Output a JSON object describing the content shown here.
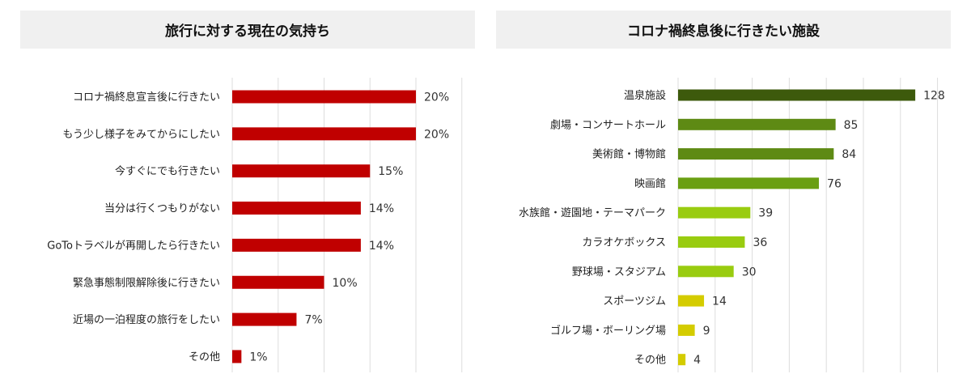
{
  "chart_data": [
    {
      "type": "bar",
      "orientation": "horizontal",
      "title": "旅行に対する現在の気持ち",
      "categories": [
        "コロナ禍終息宣言後に行きたい",
        "もう少し様子をみてからにしたい",
        "今すぐにでも行きたい",
        "当分は行くつもりがない",
        "GoToトラベルが再開したら行きたい",
        "緊急事態制限解除後に行きたい",
        "近場の一泊程度の旅行をしたい",
        "その他"
      ],
      "values": [
        20,
        20,
        15,
        14,
        14,
        10,
        7,
        1
      ],
      "value_labels": [
        "20%",
        "20%",
        "15%",
        "14%",
        "14%",
        "10%",
        "7%",
        "1%"
      ],
      "bar_colors": [
        "#c00000",
        "#c00000",
        "#c00000",
        "#c00000",
        "#c00000",
        "#c00000",
        "#c00000",
        "#c00000"
      ],
      "xlim": [
        0,
        25
      ],
      "grid": true
    },
    {
      "type": "bar",
      "orientation": "horizontal",
      "title": "コロナ禍終息後に行きたい施設",
      "categories": [
        "温泉施設",
        "劇場・コンサートホール",
        "美術館・博物館",
        "映画館",
        "水族館・遊園地・テーマパーク",
        "カラオケボックス",
        "野球場・スタジアム",
        "スポーツジム",
        "ゴルフ場・ボーリング場",
        "その他"
      ],
      "values": [
        128,
        85,
        84,
        76,
        39,
        36,
        30,
        14,
        9,
        4
      ],
      "value_labels": [
        "128",
        "85",
        "84",
        "76",
        "39",
        "36",
        "30",
        "14",
        "9",
        "4"
      ],
      "bar_colors": [
        "#3d5a0c",
        "#5e8a14",
        "#5e8a14",
        "#6a9f12",
        "#99cc10",
        "#99cc10",
        "#99cc10",
        "#d4cc00",
        "#d4cc00",
        "#d4cc00"
      ],
      "xlim": [
        0,
        140
      ],
      "grid": true
    }
  ]
}
